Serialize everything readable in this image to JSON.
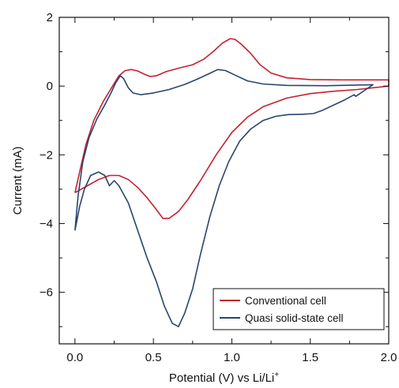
{
  "chart_data": {
    "type": "line",
    "xlabel": "Potential (V) vs Li/Li",
    "xlabel_sup": "+",
    "ylabel": "Current (mA)",
    "xlim": [
      -0.1,
      2.0
    ],
    "ylim": [
      -7.5,
      2.0
    ],
    "x_ticks": [
      0.0,
      0.5,
      1.0,
      1.5,
      2.0
    ],
    "x_tick_labels": [
      "0.0",
      "0.5",
      "1.0",
      "1.5",
      "2.0"
    ],
    "y_ticks": [
      2,
      0,
      -2,
      -4,
      -6
    ],
    "y_tick_labels": [
      "2",
      "0",
      "−2",
      "−4",
      "−6"
    ],
    "grid": false,
    "legend_position": "bottom-right",
    "series": [
      {
        "name": "Conventional cell",
        "color": "#c8202f",
        "points": [
          [
            0.0,
            -3.1
          ],
          [
            0.03,
            -2.5
          ],
          [
            0.07,
            -1.7
          ],
          [
            0.12,
            -1.0
          ],
          [
            0.18,
            -0.45
          ],
          [
            0.24,
            0.0
          ],
          [
            0.28,
            0.3
          ],
          [
            0.32,
            0.45
          ],
          [
            0.36,
            0.48
          ],
          [
            0.4,
            0.44
          ],
          [
            0.44,
            0.35
          ],
          [
            0.48,
            0.28
          ],
          [
            0.52,
            0.3
          ],
          [
            0.58,
            0.42
          ],
          [
            0.66,
            0.52
          ],
          [
            0.75,
            0.62
          ],
          [
            0.82,
            0.78
          ],
          [
            0.88,
            1.0
          ],
          [
            0.94,
            1.25
          ],
          [
            0.99,
            1.38
          ],
          [
            1.02,
            1.36
          ],
          [
            1.06,
            1.22
          ],
          [
            1.12,
            0.95
          ],
          [
            1.18,
            0.62
          ],
          [
            1.25,
            0.38
          ],
          [
            1.35,
            0.24
          ],
          [
            1.5,
            0.19
          ],
          [
            1.7,
            0.18
          ],
          [
            2.0,
            0.18
          ],
          [
            2.0,
            0.0
          ],
          [
            1.9,
            -0.05
          ],
          [
            1.8,
            -0.1
          ],
          [
            1.65,
            -0.15
          ],
          [
            1.5,
            -0.22
          ],
          [
            1.35,
            -0.35
          ],
          [
            1.2,
            -0.6
          ],
          [
            1.1,
            -0.9
          ],
          [
            1.0,
            -1.35
          ],
          [
            0.9,
            -2.0
          ],
          [
            0.8,
            -2.75
          ],
          [
            0.72,
            -3.3
          ],
          [
            0.66,
            -3.65
          ],
          [
            0.6,
            -3.85
          ],
          [
            0.56,
            -3.85
          ],
          [
            0.52,
            -3.6
          ],
          [
            0.46,
            -3.25
          ],
          [
            0.4,
            -2.95
          ],
          [
            0.34,
            -2.72
          ],
          [
            0.28,
            -2.6
          ],
          [
            0.22,
            -2.6
          ],
          [
            0.15,
            -2.72
          ],
          [
            0.08,
            -2.9
          ],
          [
            0.0,
            -3.1
          ]
        ]
      },
      {
        "name": "Quasi solid-state cell",
        "color": "#27456e",
        "points": [
          [
            0.0,
            -4.2
          ],
          [
            0.02,
            -3.2
          ],
          [
            0.05,
            -2.2
          ],
          [
            0.09,
            -1.5
          ],
          [
            0.14,
            -0.95
          ],
          [
            0.19,
            -0.55
          ],
          [
            0.23,
            -0.2
          ],
          [
            0.26,
            0.1
          ],
          [
            0.29,
            0.3
          ],
          [
            0.31,
            0.22
          ],
          [
            0.34,
            -0.05
          ],
          [
            0.37,
            -0.2
          ],
          [
            0.42,
            -0.25
          ],
          [
            0.5,
            -0.2
          ],
          [
            0.6,
            -0.1
          ],
          [
            0.7,
            0.05
          ],
          [
            0.78,
            0.2
          ],
          [
            0.85,
            0.35
          ],
          [
            0.91,
            0.48
          ],
          [
            0.96,
            0.45
          ],
          [
            1.02,
            0.32
          ],
          [
            1.1,
            0.15
          ],
          [
            1.2,
            0.06
          ],
          [
            1.35,
            0.02
          ],
          [
            1.6,
            0.01
          ],
          [
            1.9,
            0.04
          ],
          [
            1.79,
            -0.3
          ],
          [
            1.78,
            -0.25
          ],
          [
            1.72,
            -0.4
          ],
          [
            1.65,
            -0.55
          ],
          [
            1.58,
            -0.7
          ],
          [
            1.52,
            -0.8
          ],
          [
            1.45,
            -0.82
          ],
          [
            1.36,
            -0.83
          ],
          [
            1.28,
            -0.88
          ],
          [
            1.2,
            -1.0
          ],
          [
            1.12,
            -1.25
          ],
          [
            1.05,
            -1.6
          ],
          [
            0.98,
            -2.2
          ],
          [
            0.92,
            -2.9
          ],
          [
            0.86,
            -3.8
          ],
          [
            0.8,
            -4.9
          ],
          [
            0.75,
            -5.9
          ],
          [
            0.7,
            -6.6
          ],
          [
            0.66,
            -7.0
          ],
          [
            0.62,
            -6.9
          ],
          [
            0.57,
            -6.4
          ],
          [
            0.52,
            -5.7
          ],
          [
            0.46,
            -5.0
          ],
          [
            0.4,
            -4.2
          ],
          [
            0.34,
            -3.4
          ],
          [
            0.28,
            -2.9
          ],
          [
            0.25,
            -2.75
          ],
          [
            0.22,
            -2.9
          ],
          [
            0.19,
            -2.6
          ],
          [
            0.15,
            -2.5
          ],
          [
            0.1,
            -2.6
          ],
          [
            0.06,
            -3.0
          ],
          [
            0.03,
            -3.5
          ],
          [
            0.0,
            -4.2
          ]
        ]
      }
    ]
  }
}
